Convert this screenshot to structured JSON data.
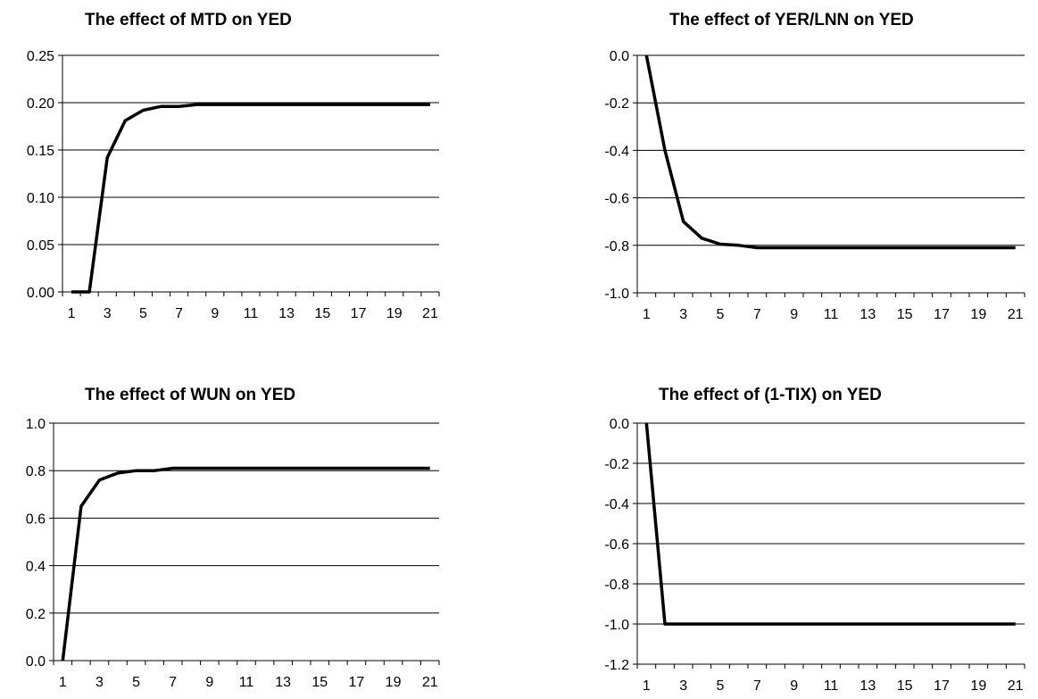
{
  "chart_data": [
    {
      "type": "line",
      "title": "The effect of MTD on YED",
      "x": [
        1,
        2,
        3,
        4,
        5,
        6,
        7,
        8,
        9,
        10,
        11,
        12,
        13,
        14,
        15,
        16,
        17,
        18,
        19,
        20,
        21
      ],
      "x_tick_labels": [
        "1",
        "3",
        "5",
        "7",
        "9",
        "11",
        "13",
        "15",
        "17",
        "19",
        "21"
      ],
      "y_tick_labels": [
        "0.00",
        "0.05",
        "0.10",
        "0.15",
        "0.20",
        "0.25"
      ],
      "ylim": [
        0,
        0.25
      ],
      "grid": true,
      "series": [
        {
          "values": [
            0,
            0,
            0.142,
            0.181,
            0.192,
            0.196,
            0.196,
            0.198,
            0.198,
            0.198,
            0.198,
            0.198,
            0.198,
            0.198,
            0.198,
            0.198,
            0.198,
            0.198,
            0.198,
            0.198,
            0.198
          ]
        }
      ]
    },
    {
      "type": "line",
      "title": "The effect of YER/LNN on YED",
      "x": [
        1,
        2,
        3,
        4,
        5,
        6,
        7,
        8,
        9,
        10,
        11,
        12,
        13,
        14,
        15,
        16,
        17,
        18,
        19,
        20,
        21
      ],
      "x_tick_labels": [
        "1",
        "3",
        "5",
        "7",
        "9",
        "11",
        "13",
        "15",
        "17",
        "19",
        "21"
      ],
      "y_tick_labels": [
        "0.0",
        "-0.2",
        "-0.4",
        "-0.6",
        "-0.8",
        "-1.0"
      ],
      "ylim": [
        -1.0,
        0.0
      ],
      "grid": true,
      "series": [
        {
          "values": [
            0,
            -0.4,
            -0.7,
            -0.77,
            -0.795,
            -0.8,
            -0.81,
            -0.81,
            -0.81,
            -0.81,
            -0.81,
            -0.81,
            -0.81,
            -0.81,
            -0.81,
            -0.81,
            -0.81,
            -0.81,
            -0.81,
            -0.81,
            -0.81
          ]
        }
      ]
    },
    {
      "type": "line",
      "title": "The effect of WUN on YED",
      "x": [
        1,
        2,
        3,
        4,
        5,
        6,
        7,
        8,
        9,
        10,
        11,
        12,
        13,
        14,
        15,
        16,
        17,
        18,
        19,
        20,
        21
      ],
      "x_tick_labels": [
        "1",
        "3",
        "5",
        "7",
        "9",
        "11",
        "13",
        "15",
        "17",
        "19",
        "21"
      ],
      "y_tick_labels": [
        "0.0",
        "0.2",
        "0.4",
        "0.6",
        "0.8",
        "1.0"
      ],
      "ylim": [
        0,
        1.0
      ],
      "grid": true,
      "series": [
        {
          "values": [
            0,
            0.65,
            0.76,
            0.79,
            0.8,
            0.8,
            0.81,
            0.81,
            0.81,
            0.81,
            0.81,
            0.81,
            0.81,
            0.81,
            0.81,
            0.81,
            0.81,
            0.81,
            0.81,
            0.81,
            0.81
          ]
        }
      ]
    },
    {
      "type": "line",
      "title": "The effect of (1-TIX) on YED",
      "x": [
        1,
        2,
        3,
        4,
        5,
        6,
        7,
        8,
        9,
        10,
        11,
        12,
        13,
        14,
        15,
        16,
        17,
        18,
        19,
        20,
        21
      ],
      "x_tick_labels": [
        "1",
        "3",
        "5",
        "7",
        "9",
        "11",
        "13",
        "15",
        "17",
        "19",
        "21"
      ],
      "y_tick_labels": [
        "0.0",
        "-0.2",
        "-0.4",
        "-0.6",
        "-0.8",
        "-1.0",
        "-1.2"
      ],
      "ylim": [
        -1.2,
        0.0
      ],
      "grid": true,
      "series": [
        {
          "values": [
            0,
            -1.0,
            -1.0,
            -1.0,
            -1.0,
            -1.0,
            -1.0,
            -1.0,
            -1.0,
            -1.0,
            -1.0,
            -1.0,
            -1.0,
            -1.0,
            -1.0,
            -1.0,
            -1.0,
            -1.0,
            -1.0,
            -1.0,
            -1.0
          ]
        }
      ]
    }
  ]
}
